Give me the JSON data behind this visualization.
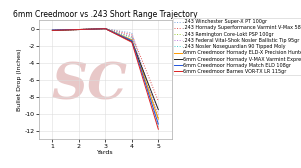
{
  "title": "6mm Creedmoor vs .243 Short Range Trajectory",
  "xlabel": "Yards",
  "ylabel": "Bullet Drop (Inches)",
  "x_ticks": [
    1,
    2,
    3,
    4,
    5
  ],
  "x_tick_labels": [
    "1",
    "2",
    "3",
    "4",
    "5"
  ],
  "ylim": [
    -13,
    1
  ],
  "yticks": [
    0,
    -2,
    -4,
    -6,
    -8,
    -10,
    -12
  ],
  "series": [
    {
      "label": ".243 Winchester Super-X PT 100gr",
      "color": "#7BA7E0",
      "style": ":",
      "values": [
        -0.2,
        -0.1,
        0.0,
        -0.5,
        -10.8
      ]
    },
    {
      "label": ".243 Hornady Superformance Varmint V-Max 58gr",
      "color": "#E05050",
      "style": ":",
      "values": [
        -0.2,
        -0.1,
        0.0,
        -0.7,
        -8.5
      ]
    },
    {
      "label": ".243 Remington Core-Lokt PSP 100gr",
      "color": "#99CC33",
      "style": ":",
      "values": [
        -0.2,
        -0.1,
        0.0,
        -1.0,
        -10.5
      ]
    },
    {
      "label": ".243 Federal Vital-Shok Nosler Ballistic Tip 95gr",
      "color": "#BB77DD",
      "style": ":",
      "values": [
        -0.2,
        -0.1,
        0.0,
        -0.9,
        -10.1
      ]
    },
    {
      "label": ".243 Nosler Noseguardian 90 Tipped Moly",
      "color": "#44CCCC",
      "style": ":",
      "values": [
        -0.2,
        -0.1,
        0.0,
        -1.1,
        -11.5
      ]
    },
    {
      "label": "6mm Creedmoor Hornady ELD-X Precision Hunter 103gr",
      "color": "#FF9900",
      "style": "-",
      "values": [
        -0.2,
        -0.1,
        0.0,
        -1.3,
        -10.6
      ]
    },
    {
      "label": "6mm Creedmoor Hornady V-MAX Varmint Express 87gr",
      "color": "#222222",
      "style": "-",
      "values": [
        -0.2,
        -0.1,
        0.0,
        -1.5,
        -9.5
      ]
    },
    {
      "label": "6mm Creedmoor Hornady Match ELD 108gr",
      "color": "#2255DD",
      "style": "-",
      "values": [
        -0.15,
        -0.1,
        0.0,
        -1.4,
        -11.2
      ]
    },
    {
      "label": "6mm Creedmoor Barnes VOR-TX LR 115gr",
      "color": "#DD2222",
      "style": "-",
      "values": [
        -0.2,
        -0.1,
        0.0,
        -1.6,
        -11.8
      ]
    }
  ],
  "watermark_color": "#e8c8c8",
  "background_color": "#ffffff",
  "grid_color": "#dddddd",
  "title_fontsize": 5.5,
  "axis_label_fontsize": 4.5,
  "tick_fontsize": 4.5,
  "legend_fontsize": 3.5
}
